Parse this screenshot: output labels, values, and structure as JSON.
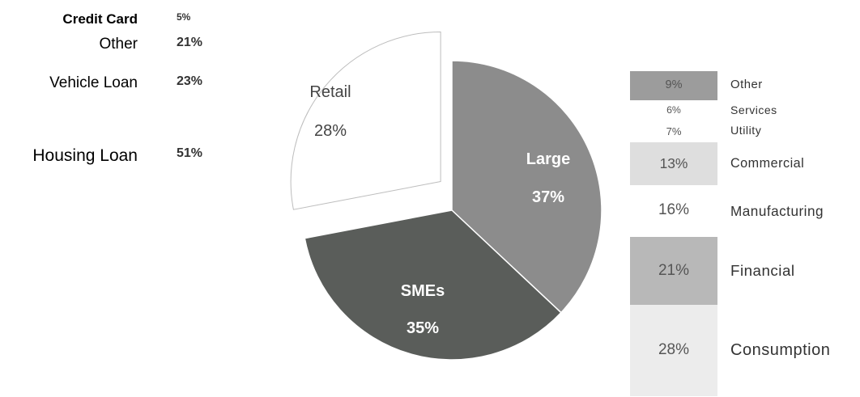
{
  "chart_data": [
    {
      "type": "pie",
      "slices": [
        {
          "label": "Large",
          "value": 37,
          "display": "37%",
          "color": "#8c8c8c",
          "exploded": false
        },
        {
          "label": "SMEs",
          "value": 35,
          "display": "35%",
          "color": "#5a5d5a",
          "exploded": false
        },
        {
          "label": "Retail",
          "value": 28,
          "display": "28%",
          "color": "#ffffff",
          "exploded": true
        }
      ]
    },
    {
      "type": "table",
      "rows": [
        {
          "label": "Credit Card",
          "value": 5,
          "display": "5%",
          "label_color": "#111111"
        },
        {
          "label": "Other",
          "value": 21,
          "display": "21%",
          "label_color": "#9a9a9a"
        },
        {
          "label": "Vehicle Loan",
          "value": 23,
          "display": "23%",
          "label_color": "#d4d4d4"
        },
        {
          "label": "Housing Loan",
          "value": 51,
          "display": "51%",
          "label_color": "#8a8a8a"
        }
      ]
    },
    {
      "type": "bar",
      "stacked": true,
      "segments": [
        {
          "label": "Other",
          "value": 9,
          "display": "9%",
          "color": "#9c9c9c"
        },
        {
          "label": "Services",
          "value": 6,
          "display": "6%",
          "color": "#ffffff"
        },
        {
          "label": "Utility",
          "value": 7,
          "display": "7%",
          "color": "#ffffff"
        },
        {
          "label": "Commercial",
          "value": 13,
          "display": "13%",
          "color": "#dedede"
        },
        {
          "label": "Manufacturing",
          "value": 16,
          "display": "16%",
          "color": "#ffffff"
        },
        {
          "label": "Financial",
          "value": 21,
          "display": "21%",
          "color": "#b8b8b8"
        },
        {
          "label": "Consumption",
          "value": 28,
          "display": "28%",
          "color": "#ececec"
        }
      ]
    }
  ]
}
